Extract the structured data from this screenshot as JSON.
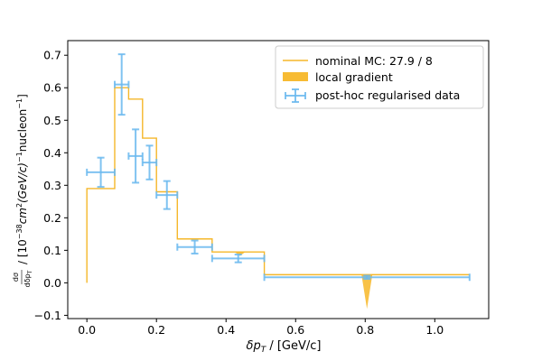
{
  "chart_data": {
    "type": "step-with-errorbars",
    "xlabel_main": "δp",
    "xlabel_sub": "T",
    "xlabel_unit": " / [GeV/c]",
    "ylabel_frac_num": "dσ",
    "ylabel_frac_den": "dδp",
    "ylabel_frac_den_sub": "T",
    "ylabel_unit": "/ [10",
    "ylabel_unit_exp1": "−38",
    "ylabel_unit_mid": "cm",
    "ylabel_unit_exp2": "2",
    "ylabel_unit_mid2": "(GeV/c)",
    "ylabel_unit_exp3": "−1",
    "ylabel_unit_mid3": "nucleon",
    "ylabel_unit_exp4": "−1",
    "ylabel_unit_end": "]",
    "xlim": [
      -0.055,
      1.155
    ],
    "ylim": [
      -0.11,
      0.745
    ],
    "xticks": [
      0.0,
      0.2,
      0.4,
      0.6,
      0.8,
      1.0
    ],
    "xtick_labels": [
      "0.0",
      "0.2",
      "0.4",
      "0.6",
      "0.8",
      "1.0"
    ],
    "yticks": [
      -0.1,
      0.0,
      0.1,
      0.2,
      0.3,
      0.4,
      0.5,
      0.6,
      0.7
    ],
    "ytick_labels": [
      "−0.1",
      "0.0",
      "0.1",
      "0.2",
      "0.3",
      "0.4",
      "0.5",
      "0.6",
      "0.7"
    ],
    "bin_edges": [
      0.0,
      0.08,
      0.12,
      0.16,
      0.2,
      0.26,
      0.36,
      0.51,
      1.1
    ],
    "mc_values": [
      0.29,
      0.6,
      0.565,
      0.445,
      0.28,
      0.135,
      0.095,
      0.025
    ],
    "gradient_markers": [
      {
        "x": 0.44,
        "top": 0.095,
        "bottom": 0.083
      },
      {
        "x": 0.805,
        "top": 0.025,
        "bottom": -0.08
      }
    ],
    "data_points": [
      {
        "x": 0.04,
        "y": 0.34,
        "xerr": 0.04,
        "yerr": 0.045
      },
      {
        "x": 0.1,
        "y": 0.61,
        "xerr": 0.02,
        "yerr": 0.093
      },
      {
        "x": 0.14,
        "y": 0.39,
        "xerr": 0.02,
        "yerr": 0.082
      },
      {
        "x": 0.18,
        "y": 0.37,
        "xerr": 0.02,
        "yerr": 0.052
      },
      {
        "x": 0.23,
        "y": 0.27,
        "xerr": 0.03,
        "yerr": 0.043
      },
      {
        "x": 0.31,
        "y": 0.11,
        "xerr": 0.05,
        "yerr": 0.02
      },
      {
        "x": 0.435,
        "y": 0.075,
        "xerr": 0.075,
        "yerr": 0.012
      },
      {
        "x": 0.805,
        "y": 0.017,
        "xerr": 0.295,
        "yerr": 0.005
      }
    ],
    "legend": [
      {
        "label": "nominal MC: 27.9 / 8",
        "kind": "line"
      },
      {
        "label": "local gradient",
        "kind": "patch"
      },
      {
        "label": "post-hoc regularised data",
        "kind": "errorbar"
      }
    ],
    "legend_position": "upper-right",
    "colors": {
      "mc": "#f5b72a",
      "gradient": "#f7bb33",
      "data": "#6ab9ee"
    }
  }
}
